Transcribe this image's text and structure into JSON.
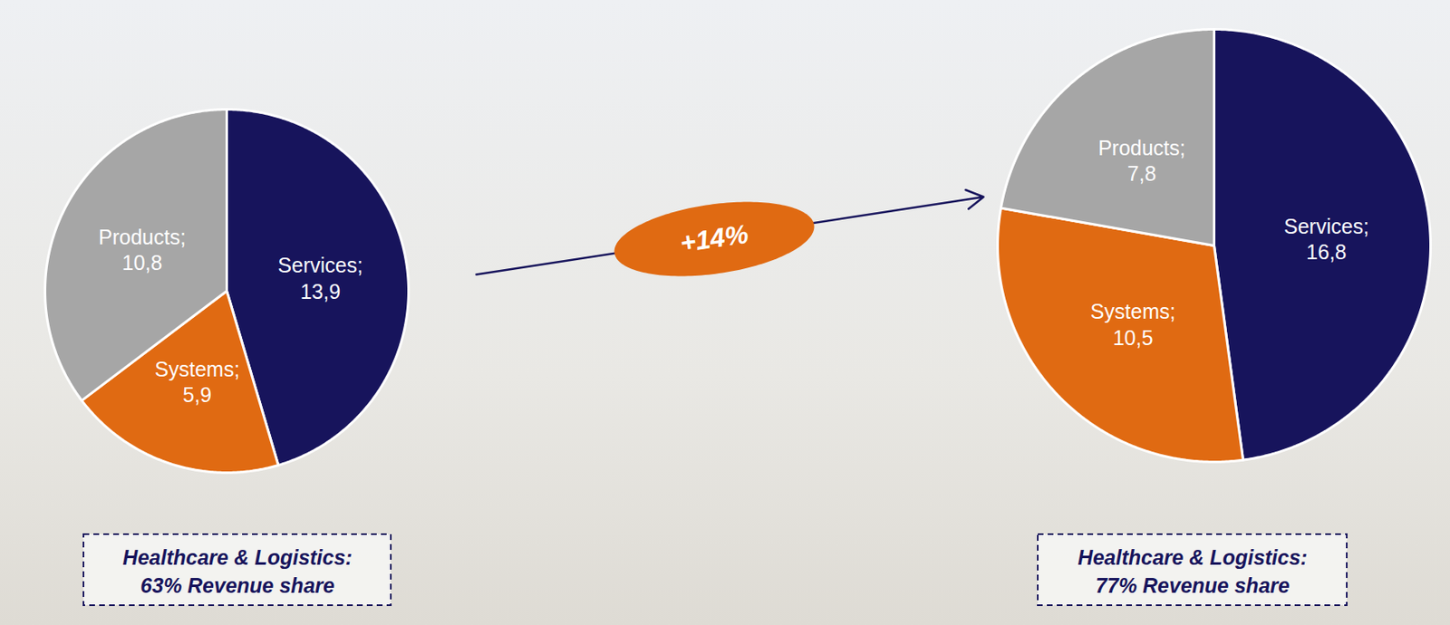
{
  "chart_data": [
    {
      "type": "pie",
      "categories": [
        "Services;",
        "Systems;",
        "Products;"
      ],
      "values": [
        13.9,
        5.9,
        10.8
      ],
      "value_labels": [
        "13,9",
        "5,9",
        "10,8"
      ],
      "colors": [
        "#17145c",
        "#e06a12",
        "#a6a6a6"
      ],
      "data_labels": true,
      "annotations": [
        "Healthcare & Logistics:",
        "63% Revenue share"
      ]
    },
    {
      "type": "pie",
      "categories": [
        "Services;",
        "Systems;",
        "Products;"
      ],
      "values": [
        16.8,
        10.5,
        7.8
      ],
      "value_labels": [
        "16,8",
        "10,5",
        "7,8"
      ],
      "colors": [
        "#17145c",
        "#e06a12",
        "#a6a6a6"
      ],
      "data_labels": true,
      "annotations": [
        "Healthcare & Logistics:",
        "77% Revenue share"
      ]
    }
  ],
  "annotations": [
    "+14%"
  ]
}
